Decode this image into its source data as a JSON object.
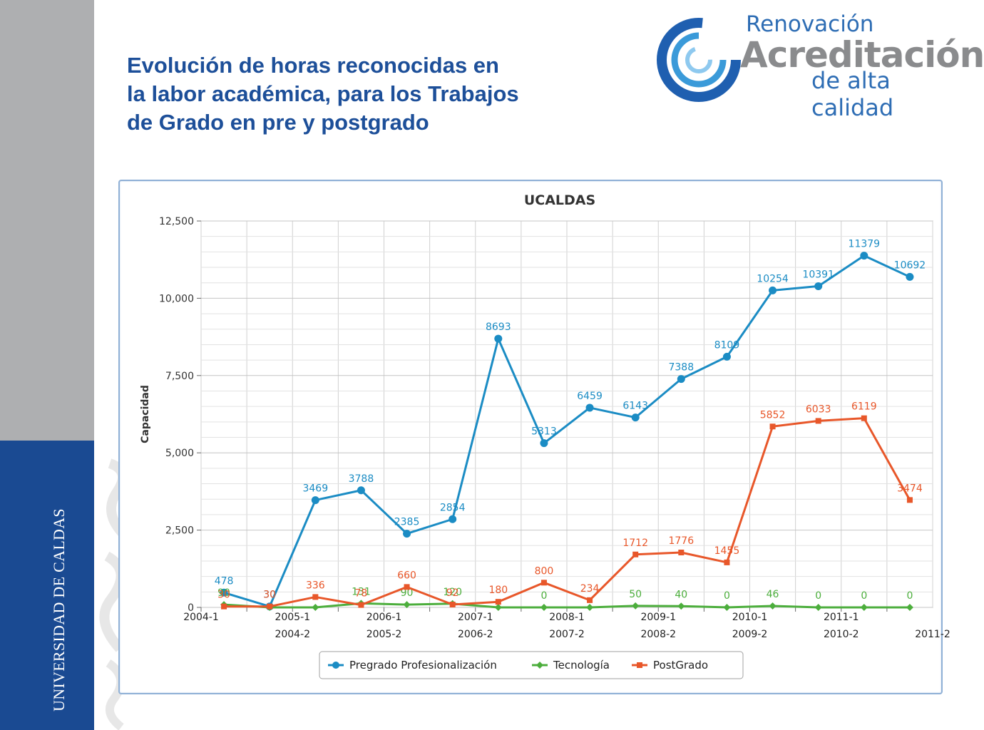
{
  "sidebar": {
    "text": "UNIVERSIDAD DE CALDAS"
  },
  "title": {
    "line1": "Evolución de horas reconocidas en",
    "line2": "la labor académica, para los Trabajos",
    "line3": "de Grado en pre y postgrado"
  },
  "logo": {
    "line1": "Renovación",
    "line2": "Acreditación",
    "line3": "de alta calidad"
  },
  "colors": {
    "pregrado": "#1b8cc4",
    "tecnologia": "#4cae3c",
    "postgrado": "#e8572a",
    "sidebar_blue": "#1a4a92",
    "title_blue": "#1d4f99"
  },
  "chart_data": {
    "type": "line",
    "title": "UCALDAS",
    "xlabel": "",
    "ylabel": "Capacidad",
    "ylim": [
      0,
      12500
    ],
    "yticks": [
      "0",
      "2,500",
      "5,000",
      "7,500",
      "10,000",
      "12,500"
    ],
    "categories": [
      "2004-1",
      "2004-2",
      "2005-1",
      "2005-2",
      "2006-1",
      "2006-2",
      "2007-1",
      "2007-2",
      "2008-1",
      "2008-2",
      "2009-1",
      "2009-2",
      "2010-1",
      "2010-2",
      "2011-1",
      "2011-2"
    ],
    "grid": true,
    "legend_position": "bottom",
    "series": [
      {
        "name": "Pregrado Profesionalización",
        "color": "#1b8cc4",
        "marker": "circle",
        "values": [
          478,
          30,
          3469,
          3788,
          2385,
          2854,
          8693,
          5313,
          6459,
          6143,
          7388,
          8109,
          10254,
          10391,
          11379,
          10692
        ],
        "labels": [
          "478",
          "30",
          "3469",
          "3788",
          "2385",
          "2854",
          "8693",
          "5313",
          "6459",
          "6143",
          "7388",
          "8109",
          "10254",
          "10391",
          "11379",
          "10692"
        ]
      },
      {
        "name": "Tecnología",
        "color": "#4cae3c",
        "marker": "diamond",
        "values": [
          90,
          0,
          0,
          131,
          90,
          120,
          0,
          0,
          0,
          50,
          40,
          0,
          46,
          0,
          0,
          0
        ],
        "labels": [
          "90",
          "",
          "",
          "131",
          "90",
          "120",
          "",
          "0",
          "",
          "50",
          "40",
          "0",
          "46",
          "0",
          "0",
          "0"
        ]
      },
      {
        "name": "PostGrado",
        "color": "#e8572a",
        "marker": "square",
        "values": [
          30,
          30,
          336,
          78,
          660,
          92,
          180,
          800,
          234,
          1712,
          1776,
          1455,
          5852,
          6033,
          6119,
          3474
        ],
        "labels": [
          "30",
          "30",
          "336",
          "78",
          "660",
          "92",
          "180",
          "800",
          "234",
          "1712",
          "1776",
          "1455",
          "5852",
          "6033",
          "6119",
          "3474"
        ]
      }
    ]
  }
}
